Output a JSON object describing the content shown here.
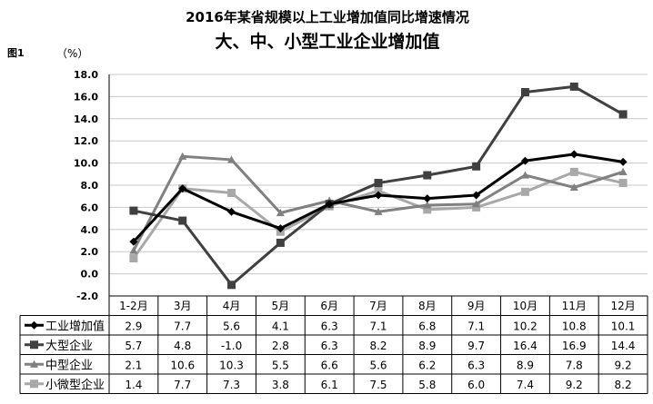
{
  "header": {
    "title": "2016年某省规模以上工业增加值同比增速情况",
    "subtitle": "大、中、小型工业企业增加值",
    "figure_label": "图1",
    "unit_label": "（%）"
  },
  "colors": {
    "工业增加值": "#000000",
    "大型企业": "#404040",
    "中型企业": "#808080",
    "小微型企业": "#a8a8a8",
    "grid": "#c8c8c8",
    "axis": "#000000"
  },
  "chart_data": {
    "type": "line",
    "title": "2016年某省规模以上工业增加值同比增速情况",
    "subtitle": "大、中、小型工业企业增加值",
    "ylabel": "（%）",
    "ylim": [
      -2.0,
      18.0
    ],
    "ytick_step": 2.0,
    "grid": true,
    "legend": "data-table-left",
    "categories": [
      "1-2月",
      "3月",
      "4月",
      "5月",
      "6月",
      "7月",
      "8月",
      "9月",
      "10月",
      "11月",
      "12月"
    ],
    "series": [
      {
        "name": "工业增加值",
        "marker": "diamond",
        "values": [
          2.9,
          7.7,
          5.6,
          4.1,
          6.3,
          7.1,
          6.8,
          7.1,
          10.2,
          10.8,
          10.1
        ]
      },
      {
        "name": "大型企业",
        "marker": "square",
        "values": [
          5.7,
          4.8,
          -1.0,
          2.8,
          6.3,
          8.2,
          8.9,
          9.7,
          16.4,
          16.9,
          14.4
        ]
      },
      {
        "name": "中型企业",
        "marker": "triangle",
        "values": [
          2.1,
          10.6,
          10.3,
          5.5,
          6.6,
          5.6,
          6.2,
          6.3,
          8.9,
          7.8,
          9.2
        ]
      },
      {
        "name": "小微型企业",
        "marker": "square",
        "values": [
          1.4,
          7.7,
          7.3,
          3.8,
          6.1,
          7.5,
          5.8,
          6.0,
          7.4,
          9.2,
          8.2
        ]
      }
    ]
  }
}
